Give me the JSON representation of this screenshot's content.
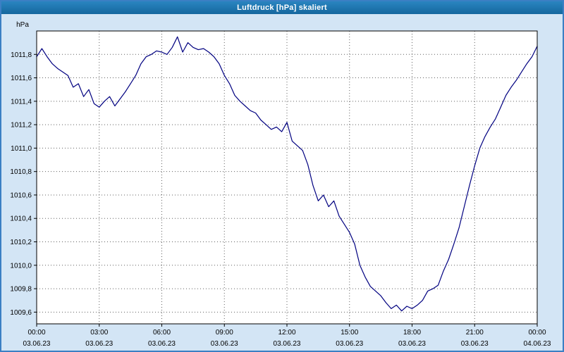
{
  "window": {
    "title": "Luftdruck [hPa] skaliert"
  },
  "colors": {
    "frame_bg": "#d3e5f5",
    "frame_border": "#3b7fc4",
    "titlebar_bg": "#15679e",
    "titlebar_text": "#ffffff",
    "plot_bg": "#ffffff",
    "plot_border": "#000000",
    "grid": "#606060",
    "line": "#000080",
    "label": "#000000"
  },
  "chart_data": {
    "type": "line",
    "title": "Luftdruck [hPa] skaliert",
    "ylabel": "hPa",
    "xlabel": "",
    "x_unit": "hours",
    "xlim": [
      0,
      24
    ],
    "ylim": [
      1009.5,
      1012.0
    ],
    "grid": true,
    "legend": "none",
    "y_ticks": [
      {
        "value": 1011.8,
        "label": "1011,8"
      },
      {
        "value": 1011.6,
        "label": "1011,6"
      },
      {
        "value": 1011.4,
        "label": "1011,4"
      },
      {
        "value": 1011.2,
        "label": "1011,2"
      },
      {
        "value": 1011.0,
        "label": "1011,0"
      },
      {
        "value": 1010.8,
        "label": "1010,8"
      },
      {
        "value": 1010.6,
        "label": "1010,6"
      },
      {
        "value": 1010.4,
        "label": "1010,4"
      },
      {
        "value": 1010.2,
        "label": "1010,2"
      },
      {
        "value": 1010.0,
        "label": "1010,0"
      },
      {
        "value": 1009.8,
        "label": "1009,8"
      },
      {
        "value": 1009.6,
        "label": "1009,6"
      }
    ],
    "x_ticks": [
      {
        "hour": 0,
        "time": "00:00",
        "date": "03.06.23"
      },
      {
        "hour": 3,
        "time": "03:00",
        "date": "03.06.23"
      },
      {
        "hour": 6,
        "time": "06:00",
        "date": "03.06.23"
      },
      {
        "hour": 9,
        "time": "09:00",
        "date": "03.06.23"
      },
      {
        "hour": 12,
        "time": "12:00",
        "date": "03.06.23"
      },
      {
        "hour": 15,
        "time": "15:00",
        "date": "03.06.23"
      },
      {
        "hour": 18,
        "time": "18:00",
        "date": "03.06.23"
      },
      {
        "hour": 21,
        "time": "21:00",
        "date": "03.06.23"
      },
      {
        "hour": 24,
        "time": "00:00",
        "date": "04.06.23"
      }
    ],
    "series": [
      {
        "name": "Luftdruck",
        "points": [
          [
            0.0,
            1011.78
          ],
          [
            0.25,
            1011.85
          ],
          [
            0.5,
            1011.78
          ],
          [
            0.75,
            1011.72
          ],
          [
            1.0,
            1011.68
          ],
          [
            1.25,
            1011.65
          ],
          [
            1.5,
            1011.62
          ],
          [
            1.75,
            1011.52
          ],
          [
            2.0,
            1011.55
          ],
          [
            2.25,
            1011.44
          ],
          [
            2.5,
            1011.5
          ],
          [
            2.75,
            1011.38
          ],
          [
            3.0,
            1011.35
          ],
          [
            3.25,
            1011.4
          ],
          [
            3.5,
            1011.44
          ],
          [
            3.75,
            1011.36
          ],
          [
            4.0,
            1011.42
          ],
          [
            4.25,
            1011.48
          ],
          [
            4.5,
            1011.55
          ],
          [
            4.75,
            1011.62
          ],
          [
            5.0,
            1011.72
          ],
          [
            5.25,
            1011.78
          ],
          [
            5.5,
            1011.8
          ],
          [
            5.75,
            1011.83
          ],
          [
            6.0,
            1011.82
          ],
          [
            6.25,
            1011.8
          ],
          [
            6.5,
            1011.86
          ],
          [
            6.75,
            1011.95
          ],
          [
            7.0,
            1011.82
          ],
          [
            7.25,
            1011.9
          ],
          [
            7.5,
            1011.86
          ],
          [
            7.75,
            1011.84
          ],
          [
            8.0,
            1011.85
          ],
          [
            8.25,
            1011.82
          ],
          [
            8.5,
            1011.78
          ],
          [
            8.75,
            1011.72
          ],
          [
            9.0,
            1011.62
          ],
          [
            9.25,
            1011.55
          ],
          [
            9.5,
            1011.45
          ],
          [
            9.75,
            1011.4
          ],
          [
            10.0,
            1011.36
          ],
          [
            10.25,
            1011.32
          ],
          [
            10.5,
            1011.3
          ],
          [
            10.75,
            1011.24
          ],
          [
            11.0,
            1011.2
          ],
          [
            11.25,
            1011.16
          ],
          [
            11.5,
            1011.18
          ],
          [
            11.75,
            1011.14
          ],
          [
            12.0,
            1011.22
          ],
          [
            12.25,
            1011.06
          ],
          [
            12.5,
            1011.02
          ],
          [
            12.75,
            1010.98
          ],
          [
            13.0,
            1010.86
          ],
          [
            13.25,
            1010.68
          ],
          [
            13.5,
            1010.55
          ],
          [
            13.75,
            1010.6
          ],
          [
            14.0,
            1010.5
          ],
          [
            14.25,
            1010.55
          ],
          [
            14.5,
            1010.42
          ],
          [
            14.75,
            1010.35
          ],
          [
            15.0,
            1010.28
          ],
          [
            15.25,
            1010.18
          ],
          [
            15.5,
            1010.0
          ],
          [
            15.75,
            1009.9
          ],
          [
            16.0,
            1009.82
          ],
          [
            16.25,
            1009.78
          ],
          [
            16.5,
            1009.74
          ],
          [
            16.75,
            1009.68
          ],
          [
            17.0,
            1009.63
          ],
          [
            17.25,
            1009.66
          ],
          [
            17.5,
            1009.61
          ],
          [
            17.75,
            1009.65
          ],
          [
            18.0,
            1009.63
          ],
          [
            18.25,
            1009.66
          ],
          [
            18.5,
            1009.7
          ],
          [
            18.75,
            1009.78
          ],
          [
            19.0,
            1009.8
          ],
          [
            19.25,
            1009.83
          ],
          [
            19.5,
            1009.95
          ],
          [
            19.75,
            1010.05
          ],
          [
            20.0,
            1010.18
          ],
          [
            20.25,
            1010.32
          ],
          [
            20.5,
            1010.5
          ],
          [
            20.75,
            1010.68
          ],
          [
            21.0,
            1010.85
          ],
          [
            21.25,
            1011.0
          ],
          [
            21.5,
            1011.1
          ],
          [
            21.75,
            1011.18
          ],
          [
            22.0,
            1011.25
          ],
          [
            22.25,
            1011.35
          ],
          [
            22.5,
            1011.45
          ],
          [
            22.75,
            1011.52
          ],
          [
            23.0,
            1011.58
          ],
          [
            23.25,
            1011.65
          ],
          [
            23.5,
            1011.72
          ],
          [
            23.75,
            1011.78
          ],
          [
            24.0,
            1011.87
          ]
        ]
      }
    ]
  }
}
